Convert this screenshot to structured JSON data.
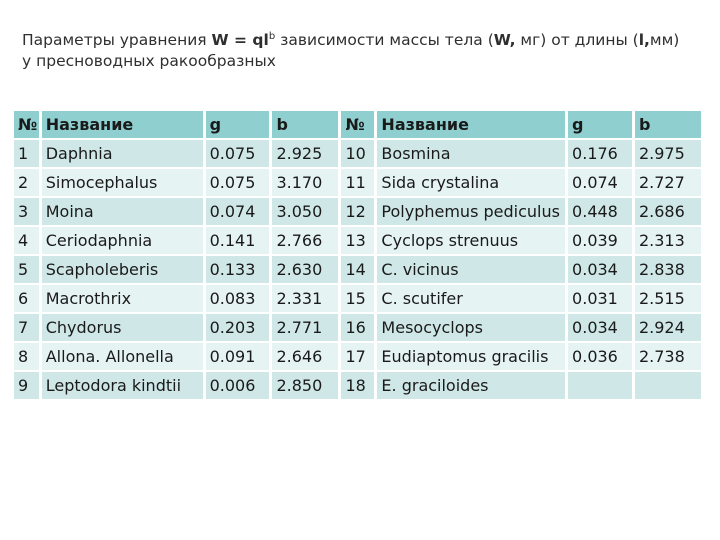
{
  "title": {
    "line1_pre": "Параметры уравнения ",
    "formula_w": "W",
    "formula_eq": " = ql",
    "formula_sup": "b",
    "line1_post": " зависимости массы тела (",
    "unit_w": "W,",
    "line1_post2": " мг) от длины (",
    "unit_l": "l,",
    "line1_post3": "мм)",
    "line2": "у пресноводных ракообразных"
  },
  "table": {
    "headers": [
      "№",
      "Название",
      "g",
      "b",
      "№",
      "Название",
      "g",
      "b"
    ],
    "rows": [
      [
        "1",
        "Daphnia",
        "0.075",
        "2.925",
        "10",
        "Bosmina",
        "0.176",
        "2.975"
      ],
      [
        "2",
        "Simocephalus",
        "0.075",
        "3.170",
        "11",
        "Sida crystalina",
        "0.074",
        "2.727"
      ],
      [
        "3",
        "Moina",
        "0.074",
        "3.050",
        "12",
        "Polyphemus pediculus",
        "0.448",
        "2.686"
      ],
      [
        "4",
        "Ceriodaphnia",
        "0.141",
        "2.766",
        "13",
        "Cyclops strenuus",
        "0.039",
        "2.313"
      ],
      [
        "5",
        "Scapholeberis",
        "0.133",
        "2.630",
        "14",
        "C. vicinus",
        "0.034",
        "2.838"
      ],
      [
        "6",
        "Macrothrix",
        "0.083",
        "2.331",
        "15",
        "C. scutifer",
        "0.031",
        "2.515"
      ],
      [
        "7",
        "Chydorus",
        "0.203",
        "2.771",
        "16",
        "Mesocyclops",
        "0.034",
        "2.924"
      ],
      [
        "8",
        "Allona. Allonella",
        "0.091",
        "2.646",
        "17",
        "Eudiaptomus gracilis",
        "0.036",
        "2.738"
      ],
      [
        "9",
        "Leptodora kindtii",
        "0.006",
        "2.850",
        "18",
        "E. graciloides",
        "",
        ""
      ]
    ]
  },
  "colors": {
    "header_bg": "#8fcfcf",
    "row_odd_bg": "#cfe7e7",
    "row_even_bg": "#e6f3f3"
  }
}
